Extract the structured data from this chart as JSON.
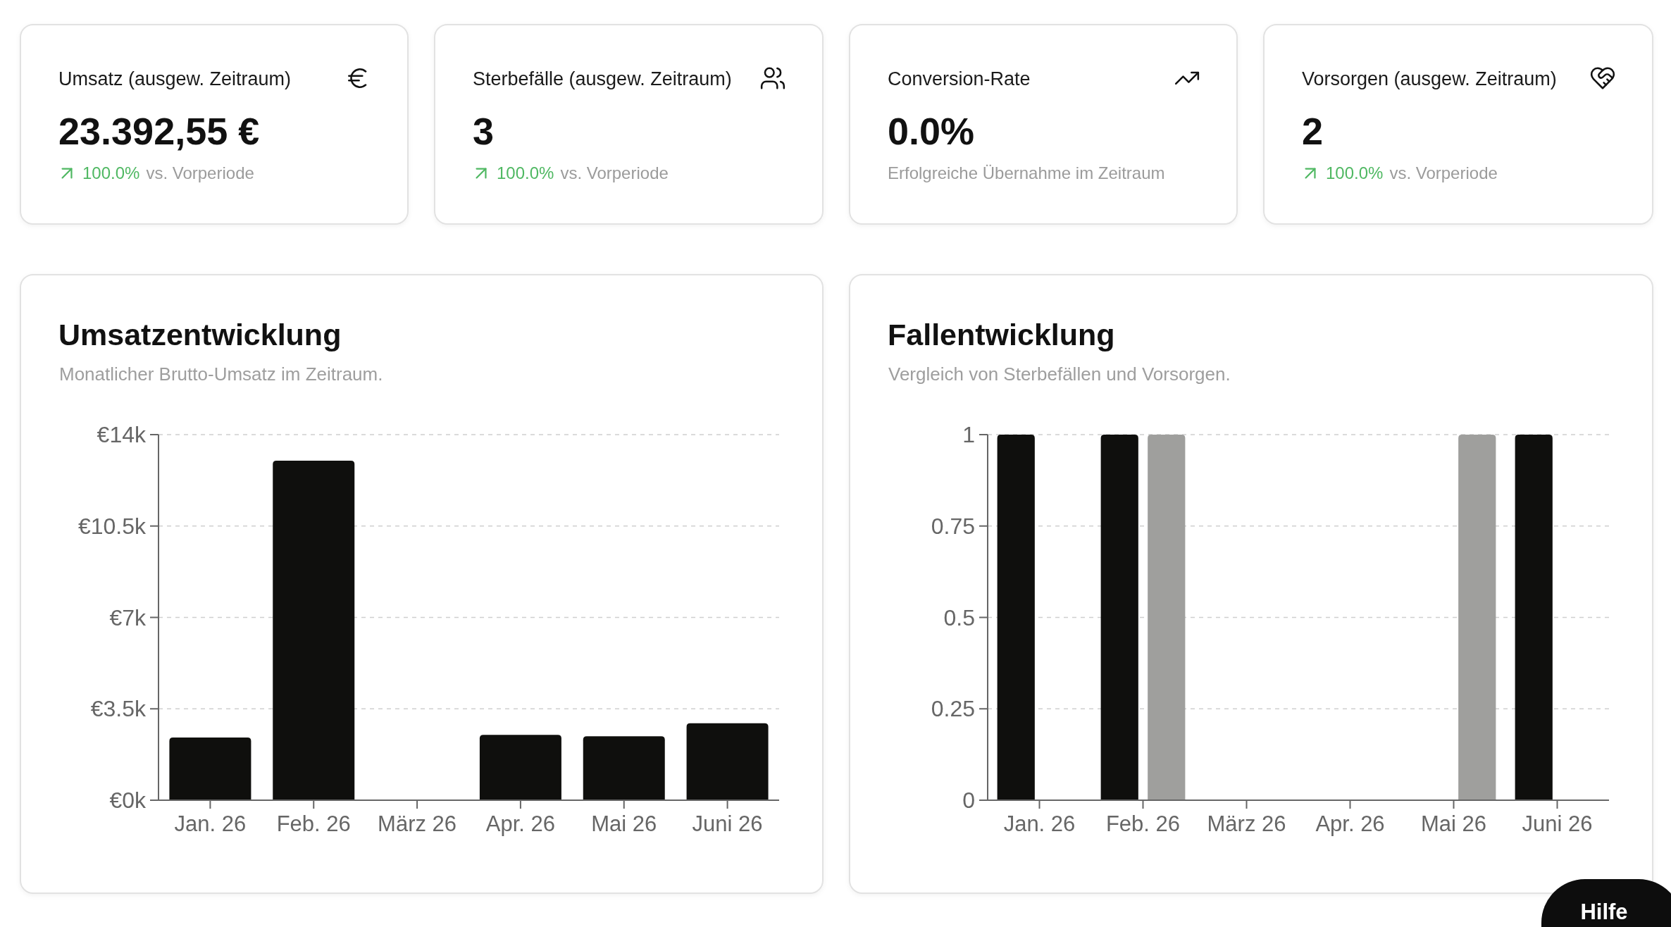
{
  "chart_data": [
    {
      "type": "other",
      "title": "Umsatz (ausgew. Zeitraum)",
      "subtitle": "23.392,55 €",
      "annotations": [
        "100.0%",
        "vs. Vorperiode"
      ]
    },
    {
      "type": "other",
      "title": "Sterbefälle (ausgew. Zeitraum)",
      "subtitle": "3",
      "annotations": [
        "100.0%",
        "vs. Vorperiode"
      ]
    },
    {
      "type": "other",
      "title": "Conversion-Rate",
      "subtitle": "0.0%",
      "annotations": [
        "Erfolgreiche Übernahme im Zeitraum"
      ]
    },
    {
      "type": "other",
      "title": "Vorsorgen (ausgew. Zeitraum)",
      "subtitle": "2",
      "annotations": [
        "100.0%",
        "vs. Vorperiode"
      ]
    },
    {
      "type": "bar",
      "title": "Umsatzentwicklung",
      "subtitle": "Monatlicher Brutto-Umsatz im Zeitraum.",
      "categories": [
        "Jan. 26",
        "Feb. 26",
        "März 26",
        "Apr. 26",
        "Mai 26",
        "Juni 26"
      ],
      "values": [
        2400,
        13000,
        0,
        2500,
        2450,
        2950
      ],
      "color": "#0f0f0d",
      "ylim": [
        0,
        14000
      ],
      "yticks": [
        {
          "value": 0,
          "label": "€0k"
        },
        {
          "value": 3500,
          "label": "€3.5k"
        },
        {
          "value": 7000,
          "label": "€7k"
        },
        {
          "value": 10500,
          "label": "€10.5k"
        },
        {
          "value": 14000,
          "label": "€14k"
        }
      ],
      "grid": "y"
    },
    {
      "type": "bar",
      "title": "Fallentwicklung",
      "subtitle": "Vergleich von Sterbefällen und Vorsorgen.",
      "categories": [
        "Jan. 26",
        "Feb. 26",
        "März 26",
        "Apr. 26",
        "Mai 26",
        "Juni 26"
      ],
      "series": [
        {
          "color": "#0f0f0d",
          "values": [
            1,
            1,
            0,
            0,
            0,
            1
          ]
        },
        {
          "color": "#9f9f9d",
          "values": [
            0,
            1,
            0,
            0,
            1,
            0
          ]
        }
      ],
      "ylim": [
        0,
        1
      ],
      "yticks": [
        0,
        0.25,
        0.5,
        0.75,
        1
      ],
      "grid": "y"
    },
    {
      "type": "other",
      "title": "Hilfe"
    }
  ]
}
